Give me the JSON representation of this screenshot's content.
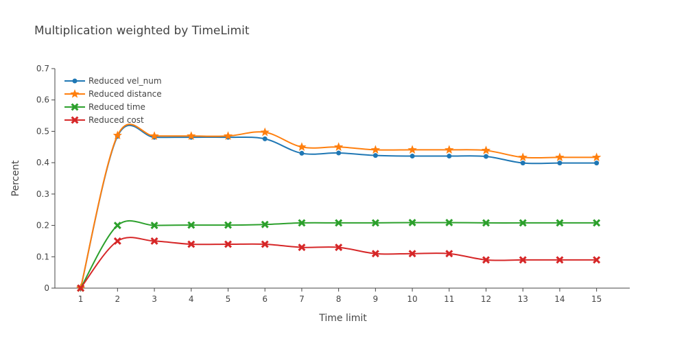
{
  "chart_data": {
    "type": "line",
    "title": "Multiplication weighted by TimeLimit",
    "xlabel": "Time limit",
    "ylabel": "Percent",
    "x": [
      1,
      2,
      3,
      4,
      5,
      6,
      7,
      8,
      9,
      10,
      11,
      12,
      13,
      14,
      15
    ],
    "xlim": [
      0.3,
      15.9
    ],
    "ylim": [
      0,
      0.7
    ],
    "yticks": [
      "0",
      "0.1",
      "0.2",
      "0.3",
      "0.4",
      "0.5",
      "0.6",
      "0.7"
    ],
    "grid": false,
    "legend": "top-left",
    "series": [
      {
        "name": "Reduced vel_num",
        "color": "#1f77b4",
        "marker": "circle",
        "values": [
          0,
          0.484,
          0.481,
          0.481,
          0.481,
          0.476,
          0.43,
          0.431,
          0.423,
          0.421,
          0.421,
          0.42,
          0.399,
          0.399,
          0.399
        ]
      },
      {
        "name": "Reduced distance",
        "color": "#ff7f0e",
        "marker": "star",
        "values": [
          0,
          0.487,
          0.485,
          0.485,
          0.485,
          0.497,
          0.45,
          0.45,
          0.441,
          0.441,
          0.441,
          0.439,
          0.417,
          0.417,
          0.417
        ]
      },
      {
        "name": "Reduced time",
        "color": "#2ca02c",
        "marker": "x",
        "values": [
          0,
          0.2,
          0.2,
          0.201,
          0.201,
          0.203,
          0.208,
          0.208,
          0.208,
          0.209,
          0.209,
          0.208,
          0.208,
          0.208,
          0.208
        ]
      },
      {
        "name": "Reduced cost",
        "color": "#d62728",
        "marker": "x",
        "values": [
          0,
          0.15,
          0.15,
          0.14,
          0.14,
          0.14,
          0.13,
          0.13,
          0.11,
          0.11,
          0.11,
          0.09,
          0.09,
          0.09,
          0.09
        ]
      }
    ]
  }
}
